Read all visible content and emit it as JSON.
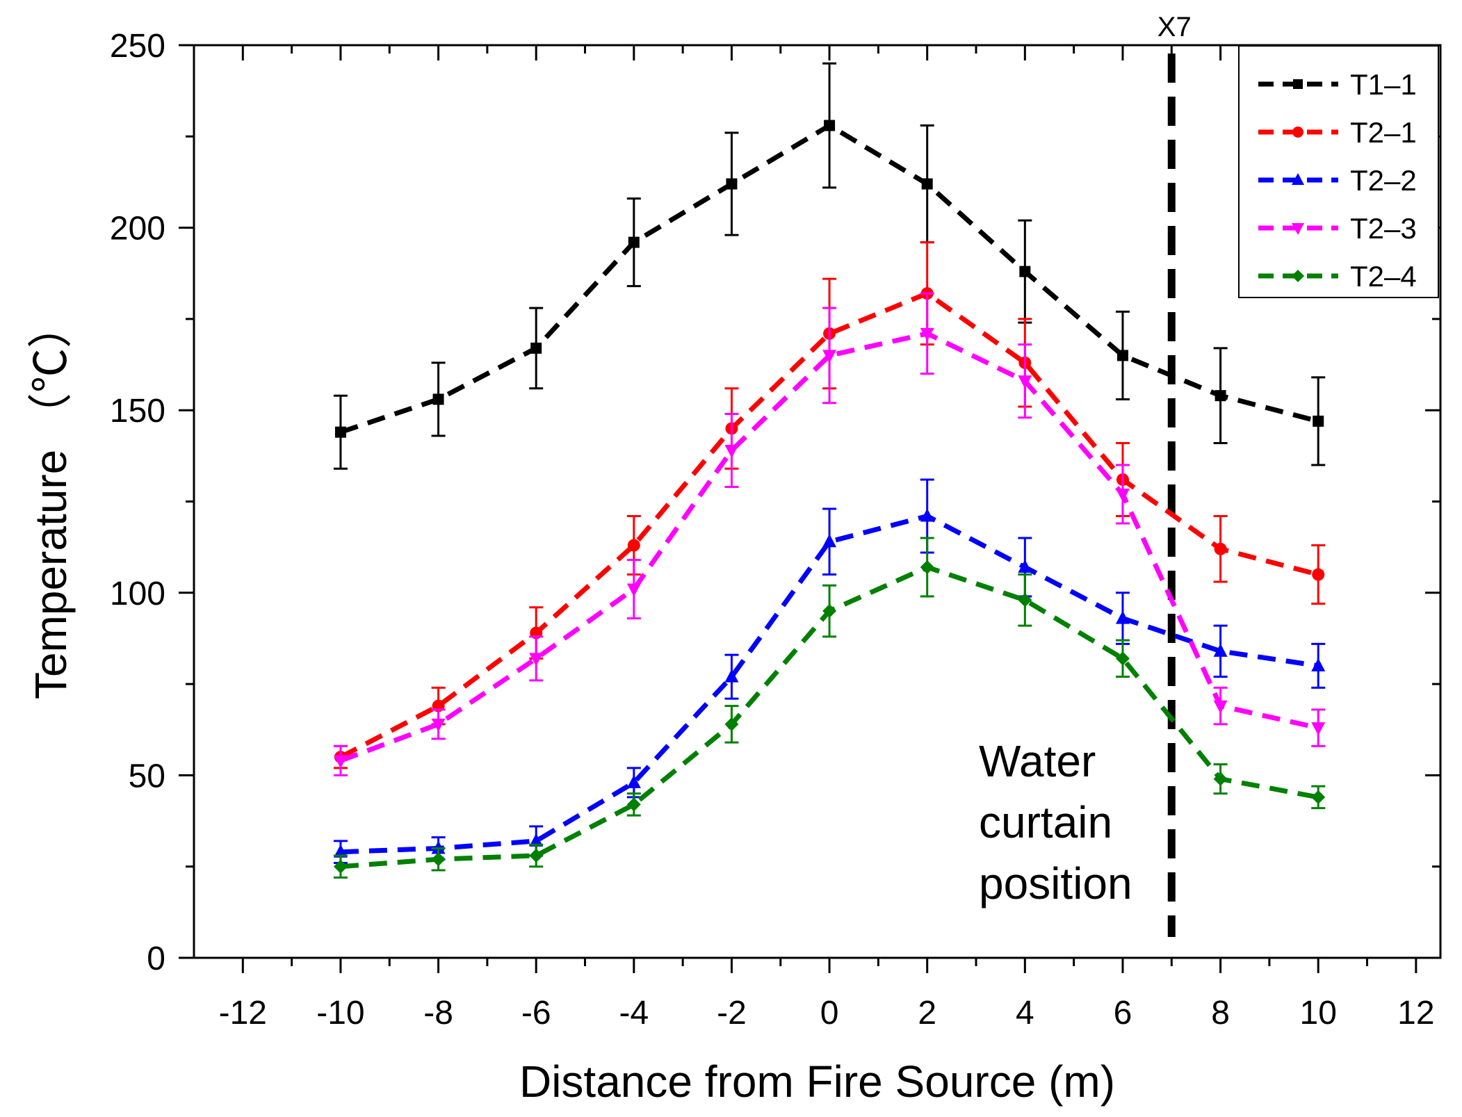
{
  "chart_data": {
    "type": "line",
    "title": "",
    "xlabel": "Distance from Fire Source (m)",
    "ylabel": "Temperature （℃）",
    "xlim": [
      -13,
      12.5
    ],
    "ylim": [
      0,
      250
    ],
    "xticks": [
      -12,
      -10,
      -8,
      -6,
      -4,
      -2,
      0,
      2,
      4,
      6,
      8,
      10,
      12
    ],
    "xtick_labels": [
      "-12",
      "-10",
      "-8",
      "-6",
      "-4",
      "-2",
      "0",
      "2",
      "4",
      "6",
      "8",
      "10",
      "12"
    ],
    "yticks": [
      0,
      50,
      100,
      150,
      200,
      250
    ],
    "ytick_labels": [
      "0",
      "50",
      "100",
      "150",
      "200",
      "250"
    ],
    "x": [
      -10,
      -8,
      -6,
      -4,
      -2,
      0,
      2,
      4,
      6,
      8,
      10
    ],
    "series": [
      {
        "name": "T1–1",
        "color": "#000000",
        "marker": "square",
        "values": [
          144,
          153,
          167,
          196,
          212,
          228,
          212,
          188,
          165,
          154,
          147
        ],
        "errors": [
          10,
          10,
          11,
          12,
          14,
          17,
          16,
          14,
          12,
          13,
          12
        ]
      },
      {
        "name": "T2–1",
        "color": "#ff0000",
        "marker": "circle",
        "values": [
          55,
          69,
          89,
          113,
          145,
          171,
          182,
          163,
          131,
          112,
          105
        ],
        "errors": [
          3,
          5,
          7,
          8,
          11,
          15,
          14,
          12,
          10,
          9,
          8
        ]
      },
      {
        "name": "T2–2",
        "color": "#0000ff",
        "marker": "triangle-up",
        "values": [
          29,
          30,
          32,
          48,
          77,
          114,
          121,
          107,
          93,
          84,
          80
        ],
        "errors": [
          3,
          3,
          4,
          4,
          6,
          9,
          10,
          8,
          7,
          7,
          6
        ]
      },
      {
        "name": "T2–3",
        "color": "#ff00ff",
        "marker": "triangle-down",
        "values": [
          54,
          64,
          82,
          101,
          139,
          165,
          171,
          158,
          127,
          69,
          63
        ],
        "errors": [
          4,
          4,
          6,
          8,
          10,
          13,
          11,
          10,
          8,
          5,
          5
        ]
      },
      {
        "name": "T2–4",
        "color": "#008000",
        "marker": "diamond",
        "values": [
          25,
          27,
          28,
          42,
          64,
          95,
          107,
          98,
          82,
          49,
          44
        ],
        "errors": [
          3,
          3,
          3,
          3,
          5,
          7,
          8,
          7,
          5,
          4,
          3
        ]
      }
    ],
    "reference_line": {
      "x": 7,
      "label": "X7",
      "style": "dashed",
      "color": "#000000"
    },
    "annotation": {
      "lines": [
        "Water",
        "curtain",
        "position"
      ]
    },
    "legend": "top-right",
    "grid": false
  }
}
